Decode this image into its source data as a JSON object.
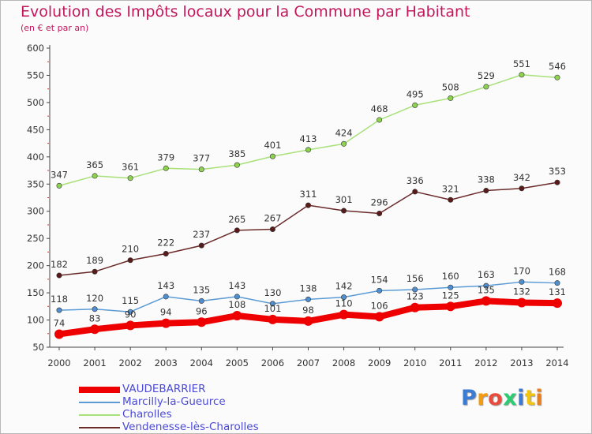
{
  "title": "Evolution des Impôts locaux pour la Commune par Habitant",
  "subtitle": "(en € et par an)",
  "logo": {
    "text": "Proxiti",
    "colors": [
      "#3a7bd5",
      "#f39c12",
      "#e74c3c",
      "#2ecc71",
      "#3a7bd5",
      "#f1c40f",
      "#e67e22"
    ]
  },
  "chart_data": {
    "type": "line",
    "title": "Evolution des Impôts locaux pour la Commune par Habitant",
    "subtitle": "(en € et par an)",
    "xlabel": "",
    "ylabel": "",
    "x": [
      "2000",
      "2001",
      "2002",
      "2003",
      "2004",
      "2005",
      "2006",
      "2007",
      "2008",
      "2009",
      "2010",
      "2011",
      "2012",
      "2013",
      "2014"
    ],
    "yticks": [
      "50",
      "100",
      "150",
      "200",
      "250",
      "300",
      "350",
      "400",
      "450",
      "500",
      "550",
      "600"
    ],
    "ylim": [
      50,
      600
    ],
    "grid": false,
    "legend_position": "bottom-left",
    "series": [
      {
        "name": "VAUDEBARRIER",
        "color": "#ee0000",
        "marker": "#ee0000",
        "values": [
          74,
          83,
          90,
          94,
          96,
          108,
          101,
          98,
          110,
          106,
          123,
          125,
          135,
          132,
          131
        ]
      },
      {
        "name": "Marcilly-la-Gueurce",
        "color": "#5b9bd5",
        "marker": "#4f8fcf",
        "values": [
          118,
          120,
          115,
          143,
          135,
          143,
          130,
          138,
          142,
          154,
          156,
          160,
          163,
          170,
          168
        ]
      },
      {
        "name": "Charolles",
        "color": "#a8e07a",
        "marker": "#8ed34f",
        "values": [
          347,
          365,
          361,
          379,
          377,
          385,
          401,
          413,
          424,
          468,
          495,
          508,
          529,
          551,
          546
        ]
      },
      {
        "name": "Vendenesse-lès-Charolles",
        "color": "#6b2a2a",
        "marker": "#5a1a1a",
        "values": [
          182,
          189,
          210,
          222,
          237,
          265,
          267,
          311,
          301,
          296,
          336,
          321,
          338,
          342,
          353
        ]
      }
    ]
  }
}
